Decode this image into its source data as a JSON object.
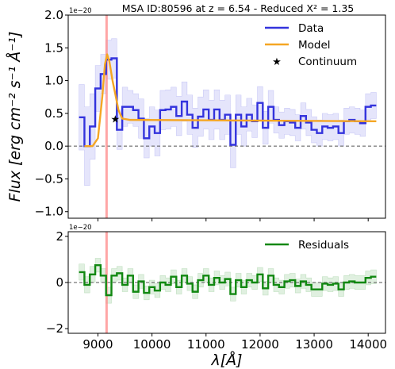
{
  "chart_data": [
    {
      "panel": "spectrum",
      "type": "line",
      "title": "MSA ID:80596 at z = 6.54 - Reduced X² = 1.35",
      "ylabel": "Flux [erg cm⁻² s⁻¹ Å⁻¹]",
      "xlabel": "",
      "y_offset_label": "1e−20",
      "xlim": [
        8450,
        14320
      ],
      "ylim": [
        -1.1,
        2.0
      ],
      "yticks": [
        -1.0,
        -0.5,
        0.0,
        0.5,
        1.0,
        1.5,
        2.0
      ],
      "ytick_labels": [
        "−1.0",
        "−0.5",
        "0.0",
        "0.5",
        "1.0",
        "1.5",
        "2.0"
      ],
      "vline_x": 9160,
      "legend_position": "top-right",
      "series": [
        {
          "name": "Data",
          "style": "step",
          "color": "#3333dd",
          "x": [
            8700,
            8800,
            8900,
            9000,
            9100,
            9200,
            9300,
            9400,
            9500,
            9600,
            9700,
            9800,
            9900,
            10000,
            10100,
            10200,
            10300,
            10400,
            10500,
            10600,
            10700,
            10800,
            10900,
            11000,
            11100,
            11200,
            11300,
            11400,
            11500,
            11600,
            11700,
            11800,
            11900,
            12000,
            12100,
            12200,
            12300,
            12400,
            12500,
            12600,
            12700,
            12800,
            12900,
            13000,
            13100,
            13200,
            13300,
            13400,
            13500,
            13600,
            13700,
            13800,
            13900,
            14000,
            14100
          ],
          "y": [
            0.44,
            0.0,
            0.3,
            0.88,
            1.1,
            1.32,
            1.34,
            0.25,
            0.6,
            0.6,
            0.55,
            0.42,
            0.12,
            0.3,
            0.2,
            0.55,
            0.56,
            0.6,
            0.46,
            0.68,
            0.48,
            0.28,
            0.45,
            0.56,
            0.4,
            0.56,
            0.4,
            0.48,
            0.02,
            0.48,
            0.3,
            0.48,
            0.38,
            0.66,
            0.28,
            0.6,
            0.4,
            0.32,
            0.38,
            0.36,
            0.28,
            0.46,
            0.36,
            0.25,
            0.2,
            0.3,
            0.28,
            0.3,
            0.2,
            0.38,
            0.4,
            0.38,
            0.35,
            0.6,
            0.62
          ]
        },
        {
          "name": "Model",
          "style": "line",
          "color": "#f5a623",
          "x": [
            8750,
            8900,
            9000,
            9080,
            9130,
            9170,
            9210,
            9270,
            9320,
            9380,
            9450,
            9600,
            14150
          ],
          "y": [
            0.0,
            0.0,
            0.12,
            0.75,
            1.25,
            1.4,
            1.3,
            1.0,
            0.8,
            0.55,
            0.42,
            0.4,
            0.38
          ]
        },
        {
          "name": "Continuum",
          "style": "marker",
          "marker": "star",
          "x": [
            9320
          ],
          "y": [
            0.42
          ]
        }
      ],
      "band": {
        "color": "#3333dd",
        "x": [
          8700,
          8800,
          8900,
          9000,
          9100,
          9200,
          9300,
          9400,
          9500,
          9600,
          9700,
          9800,
          9900,
          10000,
          10100,
          10200,
          10300,
          10400,
          10500,
          10600,
          10700,
          10800,
          10900,
          11000,
          11100,
          11200,
          11300,
          11400,
          11500,
          11600,
          11700,
          11800,
          11900,
          12000,
          12100,
          12200,
          12300,
          12400,
          12500,
          12600,
          12700,
          12800,
          12900,
          13000,
          13100,
          13200,
          13300,
          13400,
          13500,
          13600,
          13700,
          13800,
          13900,
          14000,
          14100
        ],
        "y": [
          0.44,
          0.0,
          0.3,
          0.88,
          1.1,
          1.32,
          1.34,
          0.25,
          0.6,
          0.6,
          0.55,
          0.42,
          0.12,
          0.3,
          0.2,
          0.55,
          0.56,
          0.6,
          0.46,
          0.68,
          0.48,
          0.28,
          0.45,
          0.56,
          0.4,
          0.56,
          0.4,
          0.48,
          0.02,
          0.48,
          0.3,
          0.48,
          0.38,
          0.66,
          0.28,
          0.6,
          0.4,
          0.32,
          0.38,
          0.36,
          0.28,
          0.46,
          0.36,
          0.25,
          0.2,
          0.3,
          0.28,
          0.3,
          0.2,
          0.38,
          0.4,
          0.38,
          0.35,
          0.6,
          0.62
        ],
        "halfwidth": [
          0.5,
          0.6,
          0.5,
          0.35,
          0.3,
          0.3,
          0.3,
          0.3,
          0.3,
          0.25,
          0.25,
          0.3,
          0.3,
          0.3,
          0.35,
          0.3,
          0.3,
          0.3,
          0.3,
          0.3,
          0.3,
          0.3,
          0.3,
          0.3,
          0.3,
          0.3,
          0.3,
          0.3,
          0.35,
          0.3,
          0.3,
          0.25,
          0.25,
          0.25,
          0.25,
          0.25,
          0.2,
          0.2,
          0.2,
          0.2,
          0.2,
          0.2,
          0.2,
          0.2,
          0.2,
          0.2,
          0.2,
          0.2,
          0.2,
          0.2,
          0.2,
          0.2,
          0.2,
          0.2,
          0.2
        ]
      }
    },
    {
      "panel": "residuals",
      "type": "line",
      "xlabel": "λ[Å]",
      "ylabel": "",
      "y_offset_label": "1e−20",
      "xlim": [
        8450,
        14320
      ],
      "ylim": [
        -2.2,
        2.2
      ],
      "yticks": [
        -2,
        0,
        2
      ],
      "ytick_labels": [
        "−2",
        "0",
        "2"
      ],
      "xticks": [
        9000,
        10000,
        11000,
        12000,
        13000,
        14000
      ],
      "xtick_labels": [
        "9000",
        "10000",
        "11000",
        "12000",
        "13000",
        "14000"
      ],
      "vline_x": 9160,
      "legend_position": "top-right",
      "series": [
        {
          "name": "Residuals",
          "style": "step",
          "color": "#118811",
          "x": [
            8700,
            8800,
            8900,
            9000,
            9100,
            9200,
            9300,
            9400,
            9500,
            9600,
            9700,
            9800,
            9900,
            10000,
            10100,
            10200,
            10300,
            10400,
            10500,
            10600,
            10700,
            10800,
            10900,
            11000,
            11100,
            11200,
            11300,
            11400,
            11500,
            11600,
            11700,
            11800,
            11900,
            12000,
            12100,
            12200,
            12300,
            12400,
            12500,
            12600,
            12700,
            12800,
            12900,
            13000,
            13100,
            13200,
            13300,
            13400,
            13500,
            13600,
            13700,
            13800,
            13900,
            14000,
            14100
          ],
          "y": [
            0.45,
            -0.1,
            0.35,
            0.75,
            0.3,
            -0.55,
            0.3,
            0.4,
            -0.1,
            0.3,
            -0.4,
            0.05,
            -0.45,
            -0.2,
            -0.35,
            0.0,
            -0.1,
            0.25,
            -0.2,
            0.3,
            -0.05,
            -0.4,
            0.1,
            0.3,
            -0.1,
            0.2,
            0.0,
            0.15,
            -0.5,
            0.1,
            -0.2,
            0.1,
            0.0,
            0.35,
            -0.25,
            0.3,
            -0.1,
            -0.2,
            0.05,
            0.1,
            -0.15,
            0.05,
            -0.1,
            -0.3,
            -0.3,
            -0.05,
            -0.1,
            -0.05,
            -0.3,
            0.0,
            0.05,
            0.0,
            0.0,
            0.2,
            0.25
          ]
        }
      ],
      "band": {
        "color": "#118811",
        "x": [
          8700,
          8800,
          8900,
          9000,
          9100,
          9200,
          9300,
          9400,
          9500,
          9600,
          9700,
          9800,
          9900,
          10000,
          10100,
          10200,
          10300,
          10400,
          10500,
          10600,
          10700,
          10800,
          10900,
          11000,
          11100,
          11200,
          11300,
          11400,
          11500,
          11600,
          11700,
          11800,
          11900,
          12000,
          12100,
          12200,
          12300,
          12400,
          12500,
          12600,
          12700,
          12800,
          12900,
          13000,
          13100,
          13200,
          13300,
          13400,
          13500,
          13600,
          13700,
          13800,
          13900,
          14000,
          14100
        ],
        "y": [
          0.45,
          -0.1,
          0.35,
          0.75,
          0.3,
          -0.55,
          0.3,
          0.4,
          -0.1,
          0.3,
          -0.4,
          0.05,
          -0.45,
          -0.2,
          -0.35,
          0.0,
          -0.1,
          0.25,
          -0.2,
          0.3,
          -0.05,
          -0.4,
          0.1,
          0.3,
          -0.1,
          0.2,
          0.0,
          0.15,
          -0.5,
          0.1,
          -0.2,
          0.1,
          0.0,
          0.35,
          -0.25,
          0.3,
          -0.1,
          -0.2,
          0.05,
          0.1,
          -0.15,
          0.05,
          -0.1,
          -0.3,
          -0.3,
          -0.05,
          -0.1,
          -0.05,
          -0.3,
          0.0,
          0.05,
          0.0,
          0.0,
          0.2,
          0.25
        ],
        "halfwidth": [
          0.35,
          0.35,
          0.35,
          0.3,
          0.3,
          0.35,
          0.3,
          0.3,
          0.3,
          0.3,
          0.3,
          0.3,
          0.3,
          0.3,
          0.3,
          0.3,
          0.3,
          0.3,
          0.3,
          0.3,
          0.3,
          0.3,
          0.3,
          0.3,
          0.3,
          0.3,
          0.3,
          0.3,
          0.3,
          0.3,
          0.3,
          0.3,
          0.3,
          0.3,
          0.3,
          0.3,
          0.3,
          0.3,
          0.3,
          0.3,
          0.3,
          0.3,
          0.3,
          0.3,
          0.3,
          0.3,
          0.3,
          0.3,
          0.3,
          0.3,
          0.3,
          0.3,
          0.3,
          0.3,
          0.3
        ]
      }
    }
  ]
}
